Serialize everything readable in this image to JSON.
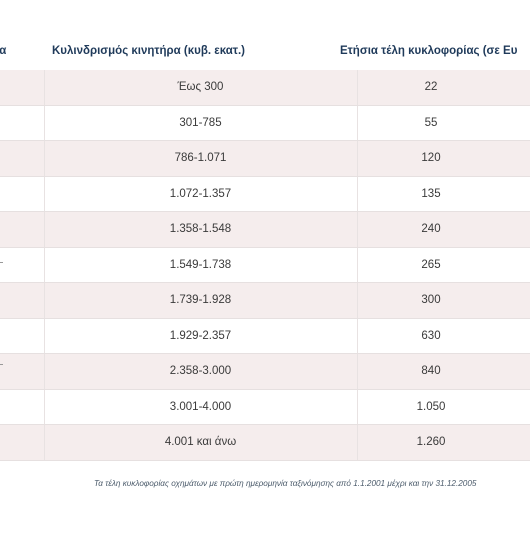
{
  "table": {
    "headers": {
      "category": "ία",
      "displacement": "Κυλινδρισμός κινητήρα (κυβ. εκατ.)",
      "annual_fee": "Ετήσια τέλη κυκλοφορίας (σε Ευ"
    },
    "rows": [
      {
        "displacement": "Έως 300",
        "fee": "22"
      },
      {
        "displacement": "301-785",
        "fee": "55"
      },
      {
        "displacement": "786-1.071",
        "fee": "120"
      },
      {
        "displacement": "1.072-1.357",
        "fee": "135"
      },
      {
        "displacement": "1.358-1.548",
        "fee": "240"
      },
      {
        "displacement": "1.549-1.738",
        "fee": "265"
      },
      {
        "displacement": "1.739-1.928",
        "fee": "300"
      },
      {
        "displacement": "1.929-2.357",
        "fee": "630"
      },
      {
        "displacement": "2.358-3.000",
        "fee": "840"
      },
      {
        "displacement": "3.001-4.000",
        "fee": "1.050"
      },
      {
        "displacement": "4.001 και άνω",
        "fee": "1.260"
      }
    ]
  },
  "footnote": "Τα τέλη κυκλοφορίας οχημάτων με πρώτη ημερομηνία ταξινόμησης από 1.1.2001 μέχρι και την 31.12.2005"
}
